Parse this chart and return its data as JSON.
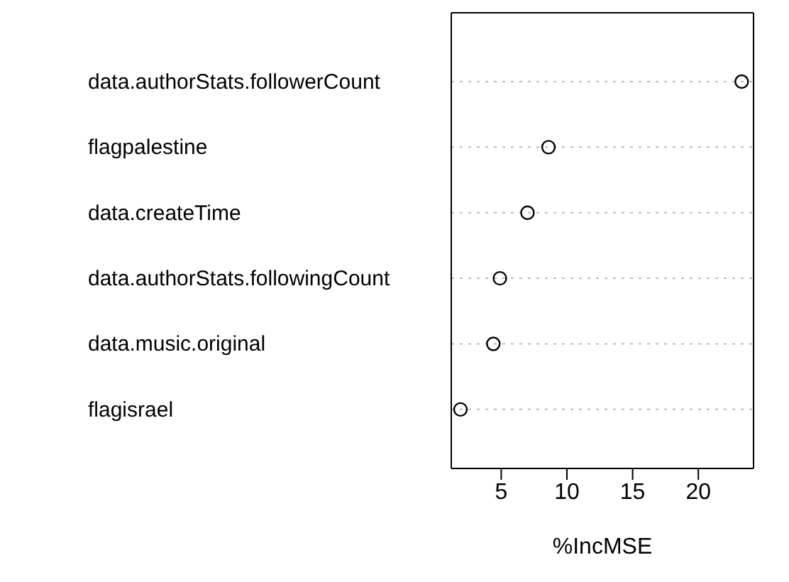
{
  "chart_data": {
    "type": "scatter",
    "orientation": "horizontal",
    "xlabel": "%IncMSE",
    "categories": [
      "data.authorStats.followerCount",
      "flagpalestine",
      "data.createTime",
      "data.authorStats.followingCount",
      "data.music.original",
      "flagisrael"
    ],
    "values": [
      23.3,
      8.6,
      7.0,
      4.9,
      4.4,
      1.9
    ],
    "color": "#000000",
    "marker": "circle",
    "grid": "y",
    "xlim": [
      1.2,
      24.2
    ],
    "xticks": [
      5,
      10,
      15,
      20
    ]
  }
}
